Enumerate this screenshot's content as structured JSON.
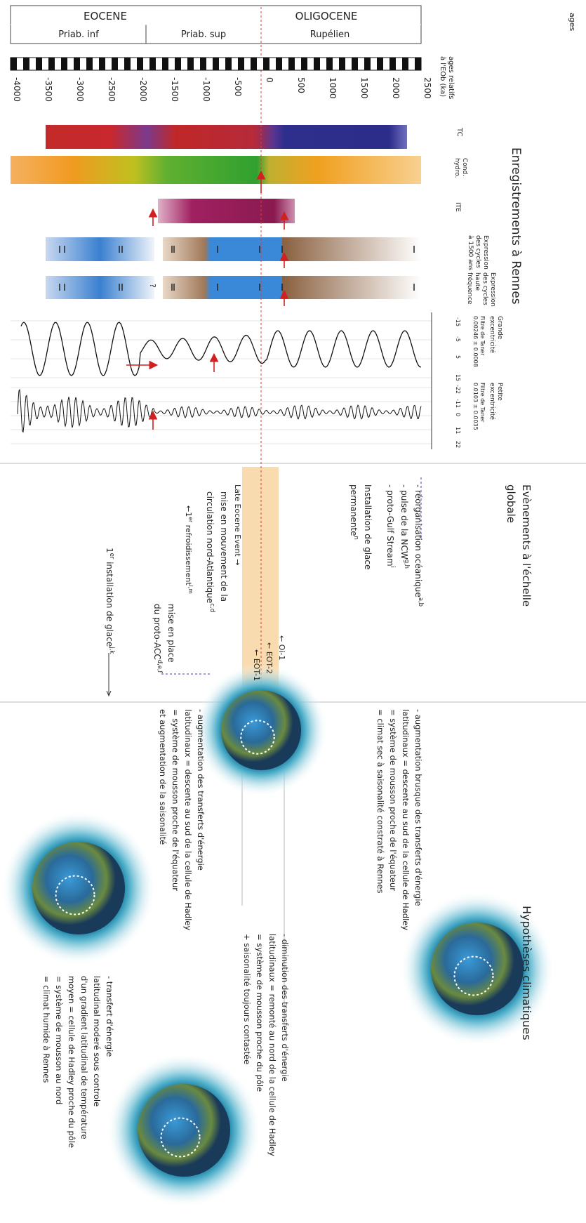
{
  "sections": {
    "records": "Enregistrements à Rennes",
    "events": [
      "Evènements à l'échelle",
      "globale"
    ],
    "hypotheses": "Hypothèses climatiques"
  },
  "ages": {
    "label": "ages",
    "eocene": "EOCENE",
    "priab_inf": "Priab. inf",
    "priab_sup": "Priab. sup",
    "oligocene": "OLIGOCENE",
    "rupelien": "Rupélien"
  },
  "axis": {
    "label": [
      "ages relatifs",
      "à l'EOb (ka)"
    ],
    "ticks": [
      "-4000",
      "-3500",
      "-3000",
      "-2500",
      "-2000",
      "-1500",
      "-1000",
      "-500",
      "0",
      "500",
      "1000",
      "1500",
      "2000",
      "2500"
    ]
  },
  "tracks": {
    "tc": "TC",
    "cond": [
      "Cond.",
      "hydro."
    ],
    "ite": "ITE",
    "expr1500": [
      "Expression",
      "des cycles",
      "à 1500 ans"
    ],
    "exprhf": [
      "Expression",
      "des cycles",
      "haute",
      "fréquence"
    ],
    "grande": {
      "label": [
        "Grande",
        "excentricité"
      ],
      "filter": [
        "Filtre de Taner",
        "0.00246 ± 0.0008"
      ],
      "ticks": [
        "-15",
        "-5",
        "5",
        "15"
      ]
    },
    "petite": {
      "label": [
        "Petite",
        "excentricité"
      ],
      "filter": [
        "Filtre de Taner",
        "0.0103 ± 0.0035"
      ],
      "ticks": [
        "-22",
        "-11",
        "0",
        "11",
        "22"
      ]
    },
    "question": "?"
  },
  "events": {
    "ocean": [
      {
        "text": "- réorganisation océanique",
        "sup": "a,b"
      },
      {
        "text": "- pulse de la NCW",
        "sup": "g,h"
      },
      {
        "text": "- proto-Gulf Stream",
        "sup": "i"
      }
    ],
    "glace": [
      {
        "text": "Installation de glace",
        "sup": ""
      },
      {
        "text": "permanente",
        "sup": "n"
      }
    ],
    "oi1": "← Oi-1",
    "eot2": "← EOT-2",
    "eot1": "← EOT-1",
    "late": "Late Eocene Event →",
    "circ": [
      {
        "text": "mise en mouvement de la",
        "sup": ""
      },
      {
        "text": "circulation nord-Atlantique",
        "sup": "c,d"
      }
    ],
    "refroid": {
      "text": "←1",
      "sup": "er",
      "text2": " refroidissement",
      "sup2": "l,m"
    },
    "acc": [
      {
        "text": "mise en place",
        "sup": ""
      },
      {
        "text": "du proto-ACC",
        "sup": "d,e,f"
      }
    ],
    "install": {
      "text": "1",
      "sup": "er",
      "text2": " installation de glace",
      "sup2": "j,k"
    }
  },
  "hypotheses": [
    [
      "- augmentation brusque des transferts d'énergie",
      "latitudinaux = descente au sud de la cellule de Hadley",
      "= système de mousson proche de l'équateur",
      "= climat sec à saisonalité constraté à Rennes"
    ],
    [
      "- diminution des transferts d'énergie",
      "latitudinaux = remonté au nord de la cellule de Hadley",
      "= système de mousson proche du pôle",
      "+ saisonalité toujours contastée"
    ],
    [
      "- augmentation des transferts d'énergie",
      "latitudinaux = descente au sud de la cellule de Hadley",
      "= système de mousson proche de l'équateur",
      "et augmentation de la saisonalité"
    ],
    [
      "- transfert d'énergie",
      "latitudinal moderé sous controle",
      "d'un gradient latitudinal de température",
      "moyen = cellule de Hadley proche du pôle",
      "= système de mousson au nord",
      "= climat humide à Rennes"
    ]
  ]
}
